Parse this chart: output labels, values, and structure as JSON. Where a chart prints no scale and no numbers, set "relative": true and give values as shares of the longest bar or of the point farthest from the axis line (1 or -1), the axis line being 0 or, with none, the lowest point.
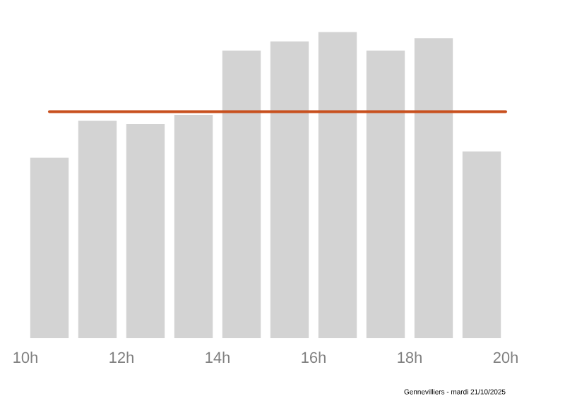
{
  "chart_data": {
    "type": "bar",
    "relative": true,
    "x": [
      10.5,
      11.5,
      12.5,
      13.5,
      14.5,
      15.5,
      16.5,
      17.5,
      18.5,
      19.5
    ],
    "values": [
      0.59,
      0.71,
      0.7,
      0.73,
      0.94,
      0.97,
      1,
      0.94,
      0.98,
      0.61
    ],
    "color": "#d3d3d3",
    "xlim": [
      10,
      20
    ],
    "xticks": [
      {
        "value": 10,
        "label": "10h"
      },
      {
        "value": 12,
        "label": "12h"
      },
      {
        "value": 14,
        "label": "14h"
      },
      {
        "value": 16,
        "label": "16h"
      },
      {
        "value": 18,
        "label": "18h"
      },
      {
        "value": 20,
        "label": "20h"
      }
    ],
    "ref_lines": [
      {
        "axis": "y",
        "value": 0.74,
        "color": "#c8501e"
      }
    ],
    "annotations": [
      "Gennevilliers - mardi 21/10/2025"
    ]
  }
}
